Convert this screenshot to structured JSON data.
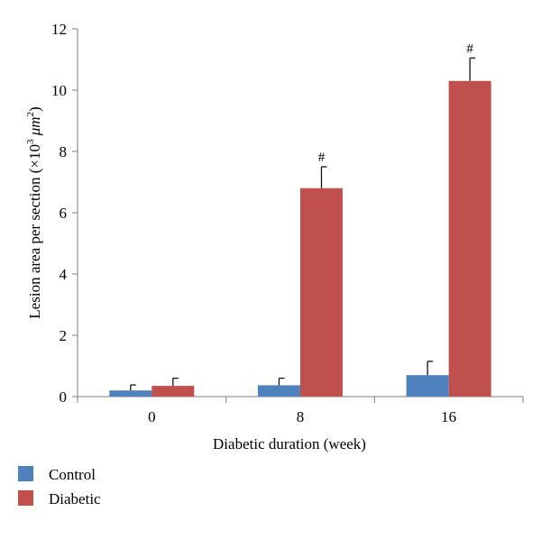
{
  "chart_data": {
    "type": "bar",
    "categories": [
      "0",
      "8",
      "16"
    ],
    "series": [
      {
        "name": "Control",
        "color": "#4f81bd",
        "values": [
          0.2,
          0.37,
          0.7
        ],
        "errors": [
          0.18,
          0.23,
          0.45
        ]
      },
      {
        "name": "Diabetic",
        "color": "#c0504d",
        "values": [
          0.35,
          6.8,
          10.3
        ],
        "errors": [
          0.25,
          0.7,
          0.75
        ]
      }
    ],
    "annotations": [
      "",
      "#",
      "#"
    ],
    "xlabel": "Diabetic duration (week)",
    "ylabel_parts": [
      "Lesion area per section (×10",
      "3",
      " μm",
      "2",
      ")"
    ],
    "ylim": [
      0,
      12
    ],
    "yticks": [
      0,
      2,
      4,
      6,
      8,
      10,
      12
    ],
    "legend": "bottom-left",
    "grid": false
  }
}
